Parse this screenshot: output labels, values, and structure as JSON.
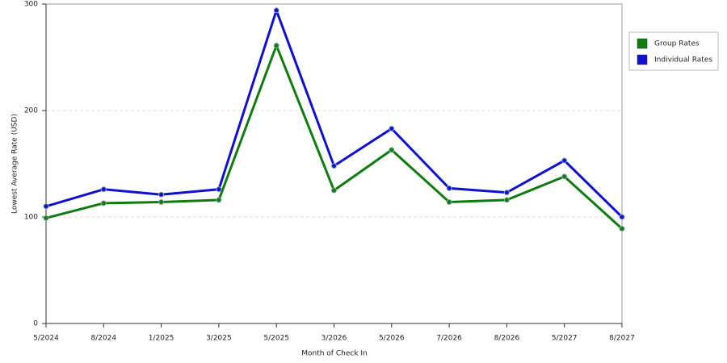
{
  "chart_data": {
    "type": "line",
    "x_label": "Month of Check In",
    "y_label": "Lowest Average Rate (USD)",
    "categories": [
      "5/2024",
      "8/2024",
      "1/2025",
      "3/2025",
      "5/2025",
      "3/2026",
      "5/2026",
      "7/2026",
      "8/2026",
      "5/2027",
      "8/2027"
    ],
    "series": [
      {
        "name": "Group Rates",
        "color": "#107c10",
        "values": [
          99,
          113,
          114,
          116,
          261,
          125,
          163,
          114,
          116,
          138,
          89
        ]
      },
      {
        "name": "Individual Rates",
        "color": "#1010d0",
        "values": [
          110,
          126,
          121,
          126,
          294,
          148,
          183,
          127,
          123,
          153,
          100
        ]
      }
    ],
    "ylim": [
      0,
      300
    ],
    "yticks": [
      0,
      100,
      200,
      300
    ],
    "grid": true,
    "legend": "right"
  }
}
